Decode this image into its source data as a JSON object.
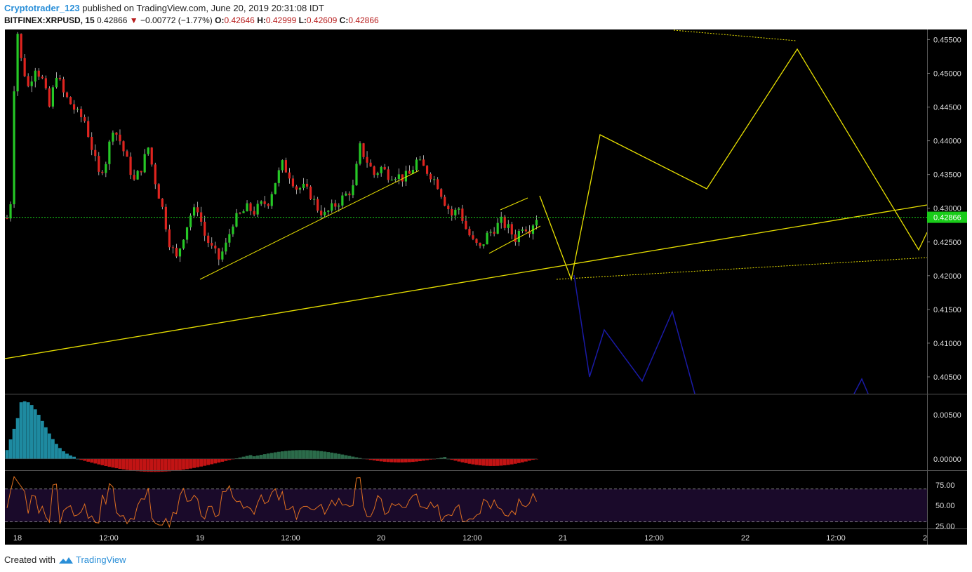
{
  "header": {
    "author": "Cryptotrader_123",
    "published_text": "published on TradingView.com, June 20, 2019 20:31:08 IDT",
    "symbol": "BITFINEX:XRPUSD, 15",
    "last": "0.42866",
    "change": "−0.00772 (−1.77%)",
    "open_label": "O:",
    "open": "0.42646",
    "high_label": "H:",
    "high": "0.42999",
    "low_label": "L:",
    "low": "0.42609",
    "close_label": "C:",
    "close": "0.42866"
  },
  "footer": {
    "created_with": "Created with",
    "brand": "TradingView"
  },
  "colors": {
    "background": "#000000",
    "up": "#26c826",
    "down": "#e0241f",
    "projection": "#e8e000",
    "bear_projection": "#1a1aa6",
    "price_tag": "#19cc19",
    "rsi_line": "#e07020",
    "rsi_band": "#1a0a2a"
  },
  "chart_data": [
    {
      "type": "candlestick",
      "title": "BITFINEX:XRPUSD, 15",
      "ylim": [
        0.4025,
        0.4565
      ],
      "y_ticks": [
        "0.45500",
        "0.45000",
        "0.44500",
        "0.44000",
        "0.43500",
        "0.43000",
        "0.42500",
        "0.42000",
        "0.41500",
        "0.41000",
        "0.40500"
      ],
      "x_ticks": [
        "18",
        "12:00",
        "19",
        "12:00",
        "20",
        "12:00",
        "21",
        "12:00",
        "22",
        "12:00",
        "2"
      ],
      "last_price_label": "0.42866",
      "last_price": 0.42866,
      "price_path": [
        [
          0,
          0.4285
        ],
        [
          1,
          0.431
        ],
        [
          2,
          0.448
        ],
        [
          3,
          0.456
        ],
        [
          4,
          0.452
        ],
        [
          6,
          0.448
        ],
        [
          8,
          0.451
        ],
        [
          10,
          0.449
        ],
        [
          12,
          0.445
        ],
        [
          14,
          0.45
        ],
        [
          16,
          0.447
        ],
        [
          18,
          0.4455
        ],
        [
          20,
          0.444
        ],
        [
          22,
          0.443
        ],
        [
          24,
          0.439
        ],
        [
          26,
          0.435
        ],
        [
          28,
          0.437
        ],
        [
          30,
          0.442
        ],
        [
          32,
          0.44
        ],
        [
          34,
          0.437
        ],
        [
          36,
          0.434
        ],
        [
          38,
          0.436
        ],
        [
          40,
          0.439
        ],
        [
          42,
          0.434
        ],
        [
          44,
          0.43
        ],
        [
          46,
          0.425
        ],
        [
          48,
          0.4225
        ],
        [
          50,
          0.426
        ],
        [
          52,
          0.429
        ],
        [
          54,
          0.43
        ],
        [
          56,
          0.426
        ],
        [
          58,
          0.424
        ],
        [
          60,
          0.4225
        ],
        [
          62,
          0.4245
        ],
        [
          64,
          0.428
        ],
        [
          66,
          0.429
        ],
        [
          68,
          0.43
        ],
        [
          70,
          0.4295
        ],
        [
          72,
          0.4305
        ],
        [
          74,
          0.431
        ],
        [
          76,
          0.434
        ],
        [
          78,
          0.4365
        ],
        [
          80,
          0.435
        ],
        [
          82,
          0.433
        ],
        [
          84,
          0.433
        ],
        [
          86,
          0.432
        ],
        [
          88,
          0.43
        ],
        [
          90,
          0.429
        ],
        [
          92,
          0.43
        ],
        [
          94,
          0.431
        ],
        [
          96,
          0.432
        ],
        [
          98,
          0.433
        ],
        [
          100,
          0.439
        ],
        [
          102,
          0.437
        ],
        [
          104,
          0.435
        ],
        [
          106,
          0.436
        ],
        [
          108,
          0.435
        ],
        [
          110,
          0.435
        ],
        [
          112,
          0.4345
        ],
        [
          114,
          0.435
        ],
        [
          116,
          0.437
        ],
        [
          118,
          0.436
        ],
        [
          120,
          0.435
        ],
        [
          122,
          0.4335
        ],
        [
          124,
          0.431
        ],
        [
          126,
          0.429
        ],
        [
          128,
          0.43
        ],
        [
          130,
          0.427
        ],
        [
          132,
          0.425
        ],
        [
          134,
          0.424
        ],
        [
          136,
          0.426
        ],
        [
          138,
          0.427
        ],
        [
          140,
          0.428
        ],
        [
          142,
          0.427
        ],
        [
          144,
          0.4255
        ],
        [
          146,
          0.4275
        ],
        [
          148,
          0.427
        ],
        [
          150,
          0.4287
        ]
      ],
      "annotations": {
        "rising_support_start": [
          0.4067,
          "18"
        ],
        "projection_label": "yellow zigzag projection",
        "bear_label": "blue zigzag projection"
      }
    },
    {
      "type": "histogram",
      "title": "",
      "ylim": [
        -0.0012,
        0.0072
      ],
      "y_ticks": [
        "0.00500",
        "0.00000"
      ]
    },
    {
      "type": "line",
      "title": "",
      "ylim": [
        22,
        92
      ],
      "y_ticks": [
        "75.00",
        "50.00",
        "25.00"
      ],
      "bands": [
        70,
        30
      ]
    }
  ]
}
